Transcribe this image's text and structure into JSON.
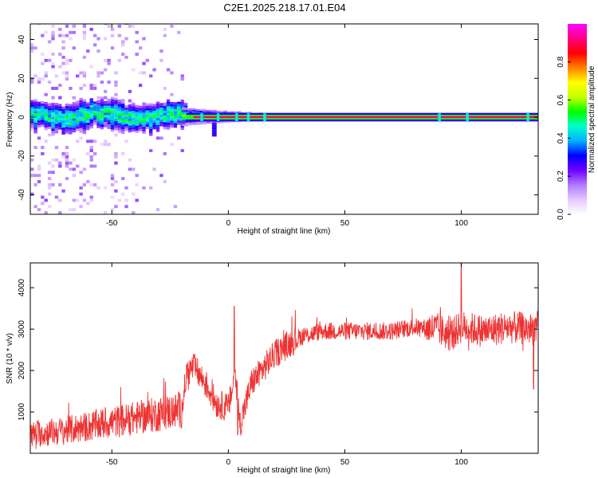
{
  "title": "C2E1.2025.218.17.01.E04",
  "chart_data": [
    {
      "type": "heatmap",
      "xlabel": "Height of straight line (km)",
      "ylabel": "Frequency (Hz)",
      "xlim": [
        -85,
        133
      ],
      "ylim": [
        -50,
        48
      ],
      "xticks": [
        -50,
        0,
        50,
        100
      ],
      "yticks": [
        -40,
        -20,
        0,
        20,
        40
      ],
      "colorbar": {
        "label": "Normalized spectral amplitude",
        "range": [
          0,
          1
        ],
        "ticks": [
          "0.0",
          "0.2",
          "0.4",
          "0.6",
          "0.8"
        ],
        "colors": [
          "#ffffff",
          "#e6c8ff",
          "#b07bff",
          "#7000ff",
          "#0000ff",
          "#00b0ff",
          "#00ffcc",
          "#00ff00",
          "#c8ff00",
          "#ffff00",
          "#ff8000",
          "#ff0000",
          "#ff0080",
          "#ff00ff"
        ]
      },
      "features": [
        {
          "name": "spectral line",
          "frequency_hz": 0,
          "x_range": [
            -85,
            133
          ]
        },
        {
          "name": "broad noise region",
          "x_range": [
            -85,
            -18
          ],
          "frequency_spread_hz": 10
        }
      ]
    },
    {
      "type": "line",
      "xlabel": "Height of straight line (km)",
      "ylabel": "SNR (10 * v/v)",
      "xlim": [
        -85,
        133
      ],
      "ylim": [
        0,
        4600
      ],
      "xticks": [
        -50,
        0,
        50,
        100
      ],
      "yticks": [
        1000,
        2000,
        3000,
        4000
      ],
      "color": "#ee3333",
      "envelope": {
        "x": [
          -85,
          -70,
          -60,
          -50,
          -40,
          -30,
          -20,
          -18,
          -15,
          -10,
          -5,
          0,
          3,
          5,
          10,
          20,
          30,
          40,
          50,
          60,
          70,
          80,
          90,
          95,
          100,
          105,
          110,
          120,
          130,
          133
        ],
        "y": [
          450,
          550,
          650,
          750,
          850,
          950,
          1050,
          1900,
          2100,
          1700,
          1200,
          1100,
          1900,
          700,
          1700,
          2400,
          2800,
          2950,
          2950,
          2950,
          2950,
          3050,
          3000,
          2850,
          3050,
          3000,
          2950,
          3050,
          3000,
          3050
        ]
      },
      "notable_points": [
        {
          "x": 2.5,
          "y": 3550
        },
        {
          "x": 4,
          "y": 450
        },
        {
          "x": 100,
          "y": 4600
        },
        {
          "x": 131,
          "y": 1550
        }
      ]
    }
  ]
}
